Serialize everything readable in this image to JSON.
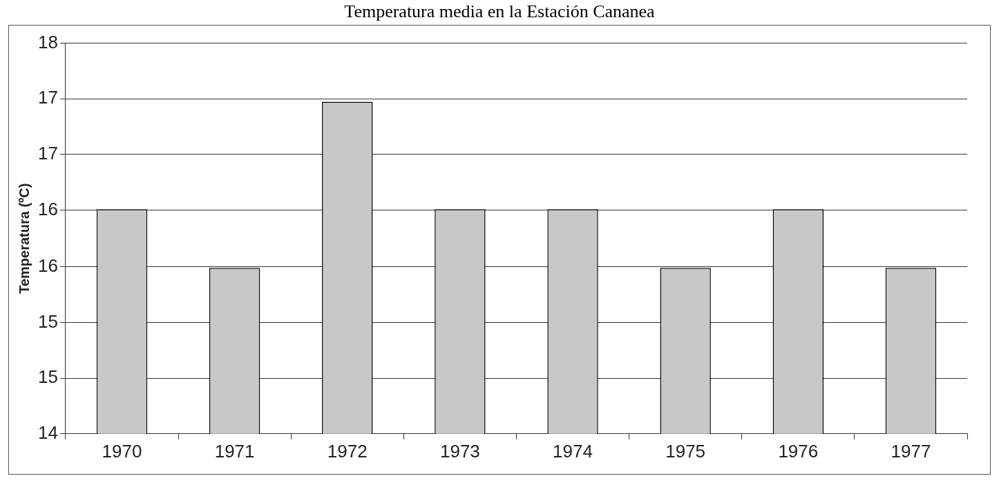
{
  "chart_data": {
    "type": "bar",
    "title": "Temperatura media en la Estación Cananea",
    "ylabel": "Temperatura (ºC)",
    "categories": [
      "1970",
      "1971",
      "1972",
      "1973",
      "1974",
      "1975",
      "1976",
      "1977"
    ],
    "values": [
      16.3,
      15.7,
      17.4,
      16.3,
      16.3,
      15.7,
      16.3,
      15.7
    ],
    "color": "#c8c8c8",
    "ylim": [
      14,
      18
    ],
    "yticks": [
      14,
      {
        "value": 14.57,
        "label": "15"
      },
      {
        "value": 15.14,
        "label": "15"
      },
      {
        "value": 15.71,
        "label": "16"
      },
      {
        "value": 16.29,
        "label": "16"
      },
      {
        "value": 16.86,
        "label": "17"
      },
      {
        "value": 17.43,
        "label": "17"
      },
      18
    ],
    "grid": "y",
    "legend": false
  }
}
